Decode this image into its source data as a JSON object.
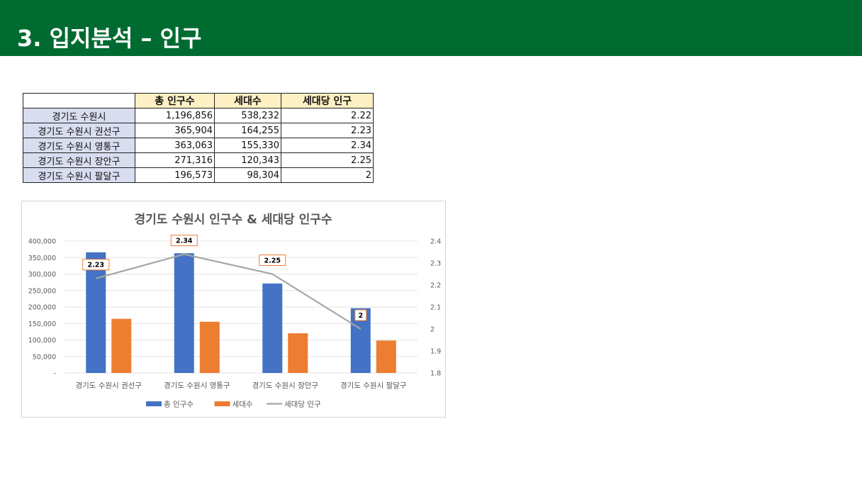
{
  "page": {
    "title": "3. 입지분석 – 인구"
  },
  "table": {
    "headers": [
      "",
      "총 인구수",
      "세대수",
      "세대당 인구"
    ],
    "rows": [
      {
        "name": "경기도 수원시",
        "population": "1,196,856",
        "households": "538,232",
        "per_household": "2.22"
      },
      {
        "name": "경기도 수원시 권선구",
        "population": "365,904",
        "households": "164,255",
        "per_household": "2.23"
      },
      {
        "name": "경기도 수원시 영통구",
        "population": "363,063",
        "households": "155,330",
        "per_household": "2.34"
      },
      {
        "name": "경기도 수원시 장안구",
        "population": "271,316",
        "households": "120,343",
        "per_household": "2.25"
      },
      {
        "name": "경기도 수원시 팔달구",
        "population": "196,573",
        "households": "98,304",
        "per_household": "2"
      }
    ]
  },
  "chart_data": {
    "type": "bar",
    "title": "경기도 수원시 인구수 & 세대당 인구수",
    "categories": [
      "경기도 수원시 권선구",
      "경기도 수원시 영통구",
      "경기도 수원시 장안구",
      "경기도 수원시 팔달구"
    ],
    "series": [
      {
        "name": "총 인구수",
        "type": "bar",
        "axis": "left",
        "color": "#4472C4",
        "values": [
          365904,
          363063,
          271316,
          196573
        ]
      },
      {
        "name": "세대수",
        "type": "bar",
        "axis": "left",
        "color": "#ED7D31",
        "values": [
          164255,
          155330,
          120343,
          98304
        ]
      },
      {
        "name": "세대당 인구",
        "type": "line",
        "axis": "right",
        "color": "#A5A5A5",
        "values": [
          2.23,
          2.34,
          2.25,
          2
        ],
        "data_labels": [
          "2.23",
          "2.34",
          "2.25",
          "2"
        ]
      }
    ],
    "ylim": [
      0,
      400000
    ],
    "y_ticks": [
      "-",
      "50,000",
      "100,000",
      "150,000",
      "200,000",
      "250,000",
      "300,000",
      "350,000",
      "400,000"
    ],
    "y2lim": [
      1.8,
      2.4
    ],
    "y2_ticks": [
      "1.8",
      "1.9",
      "2",
      "2.1",
      "2.2",
      "2.3",
      "2.4"
    ],
    "grid": true,
    "legend": "bottom",
    "label_border_color": "#ED7D31"
  }
}
